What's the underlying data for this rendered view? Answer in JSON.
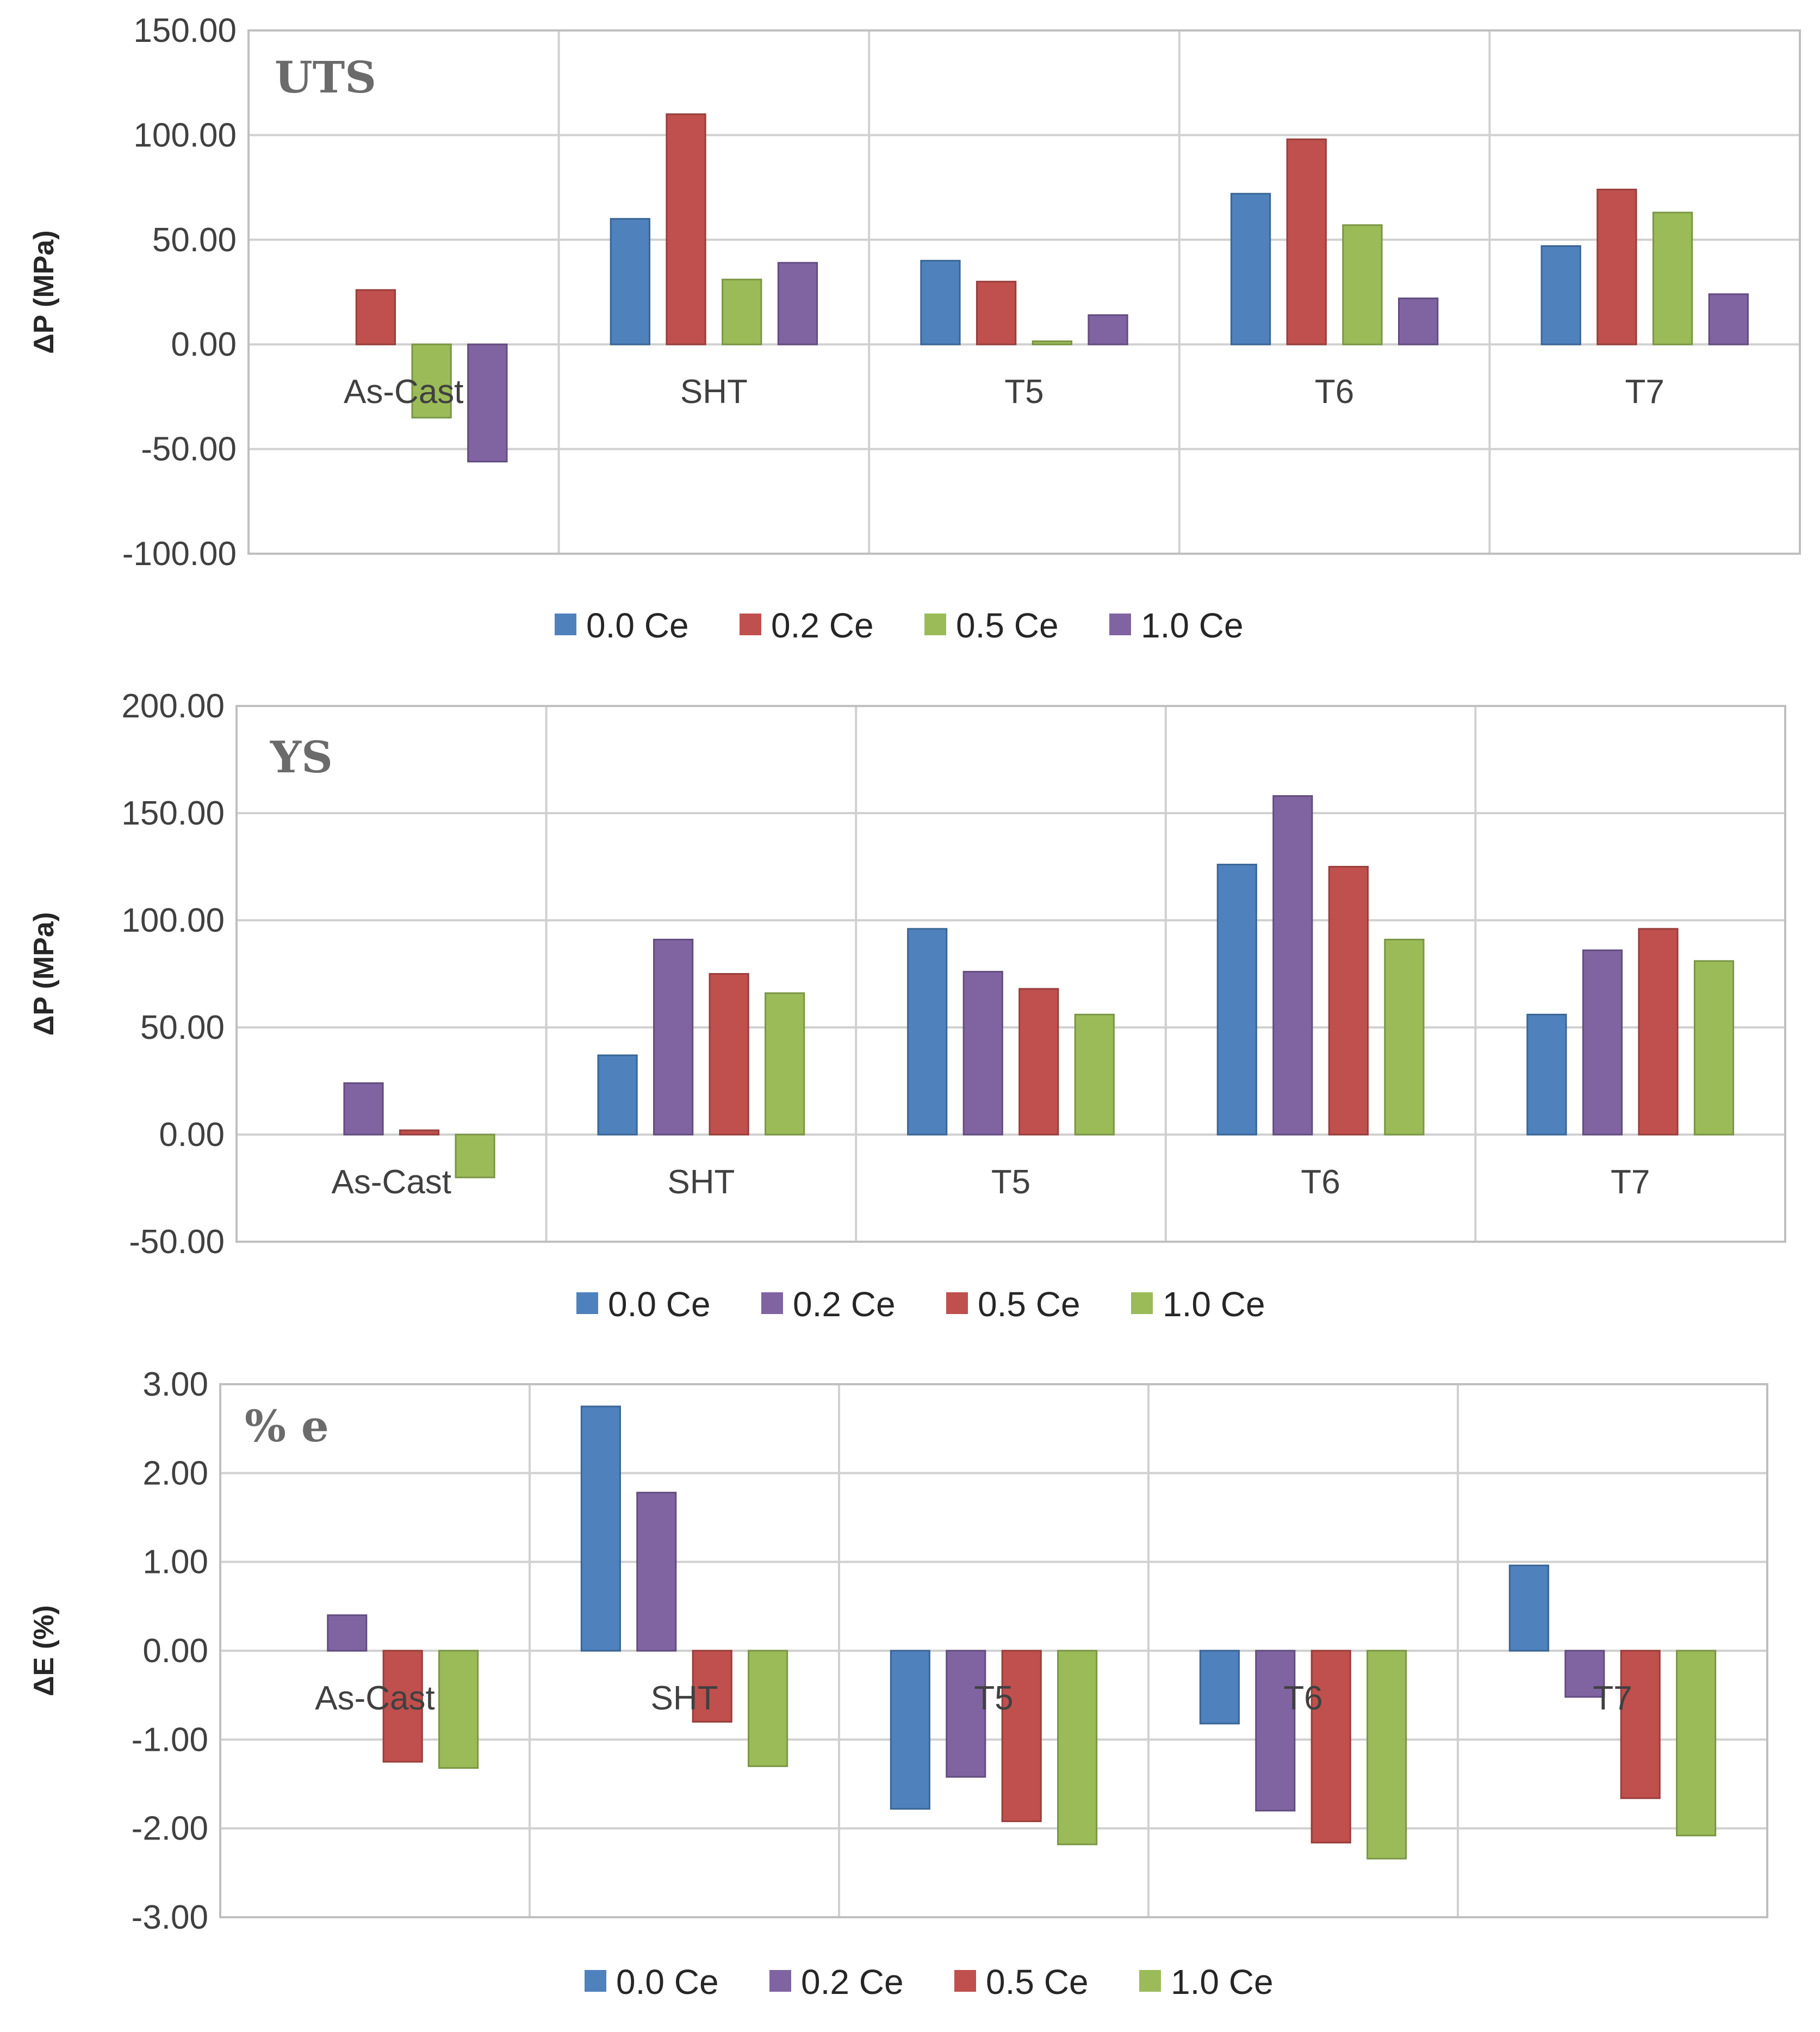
{
  "colors": {
    "blue": "#4f81bd",
    "red": "#c0504d",
    "green": "#9bbb59",
    "purple": "#8064a2",
    "blue_edge": "#3a6696",
    "red_edge": "#983e3b",
    "green_edge": "#7a9644",
    "purple_edge": "#634d80"
  },
  "chart_data": [
    {
      "type": "bar",
      "title": "UTS",
      "ylabel": "ΔP (MPa)",
      "ylim": [
        -100,
        150
      ],
      "yticks": [
        -100,
        -50,
        0,
        50,
        100,
        150
      ],
      "ytick_labels": [
        "-100.00",
        "-50.00",
        "0.00",
        "50.00",
        "100.00",
        "150.00"
      ],
      "categories": [
        "As-Cast",
        "SHT",
        "T5",
        "T6",
        "T7"
      ],
      "series": [
        {
          "name": "0.0 Ce",
          "color": "blue",
          "values": [
            0,
            60,
            40,
            72,
            47
          ]
        },
        {
          "name": "0.2 Ce",
          "color": "red",
          "values": [
            26,
            110,
            30,
            98,
            74
          ]
        },
        {
          "name": "0.5 Ce",
          "color": "green",
          "values": [
            -35,
            31,
            1.5,
            57,
            63
          ]
        },
        {
          "name": "1.0 Ce",
          "color": "purple",
          "values": [
            -56,
            39,
            14,
            22,
            24
          ]
        }
      ],
      "legend": [
        "0.0 Ce",
        "0.2 Ce",
        "0.5 Ce",
        "1.0 Ce"
      ],
      "legend_position": "bottom"
    },
    {
      "type": "bar",
      "title": "YS",
      "ylabel": "ΔP (MPa)",
      "ylim": [
        -50,
        200
      ],
      "yticks": [
        -50,
        0,
        50,
        100,
        150,
        200
      ],
      "ytick_labels": [
        "-50.00",
        "0.00",
        "50.00",
        "100.00",
        "150.00",
        "200.00"
      ],
      "categories": [
        "As-Cast",
        "SHT",
        "T5",
        "T6",
        "T7"
      ],
      "series": [
        {
          "name": "0.0 Ce",
          "color": "blue",
          "values": [
            0,
            37,
            96,
            126,
            56
          ]
        },
        {
          "name": "0.2 Ce",
          "color": "purple",
          "values": [
            24,
            91,
            76,
            158,
            86
          ]
        },
        {
          "name": "0.5 Ce",
          "color": "red",
          "values": [
            2,
            75,
            68,
            125,
            96
          ]
        },
        {
          "name": "1.0 Ce",
          "color": "green",
          "values": [
            -20,
            66,
            56,
            91,
            81
          ]
        }
      ],
      "legend": [
        "0.0 Ce",
        "0.2 Ce",
        "0.5 Ce",
        "1.0 Ce"
      ],
      "legend_position": "bottom"
    },
    {
      "type": "bar",
      "title": "% e",
      "ylabel": "ΔE (%)",
      "ylim": [
        -3,
        3
      ],
      "yticks": [
        -3,
        -2,
        -1,
        0,
        1,
        2,
        3
      ],
      "ytick_labels": [
        "-3.00",
        "-2.00",
        "-1.00",
        "0.00",
        "1.00",
        "2.00",
        "3.00"
      ],
      "categories": [
        "As-Cast",
        "SHT",
        "T5",
        "T6",
        "T7"
      ],
      "series": [
        {
          "name": "0.0 Ce",
          "color": "blue",
          "values": [
            0,
            2.75,
            -1.78,
            -0.82,
            0.96
          ]
        },
        {
          "name": "0.2 Ce",
          "color": "purple",
          "values": [
            0.4,
            1.78,
            -1.42,
            -1.8,
            -0.52
          ]
        },
        {
          "name": "0.5 Ce",
          "color": "red",
          "values": [
            -1.25,
            -0.8,
            -1.92,
            -2.16,
            -1.66
          ]
        },
        {
          "name": "1.0 Ce",
          "color": "green",
          "values": [
            -1.32,
            -1.3,
            -2.18,
            -2.34,
            -2.08
          ]
        }
      ],
      "legend": [
        "0.0 Ce",
        "0.2 Ce",
        "0.5 Ce",
        "1.0 Ce"
      ],
      "legend_position": "bottom"
    }
  ]
}
